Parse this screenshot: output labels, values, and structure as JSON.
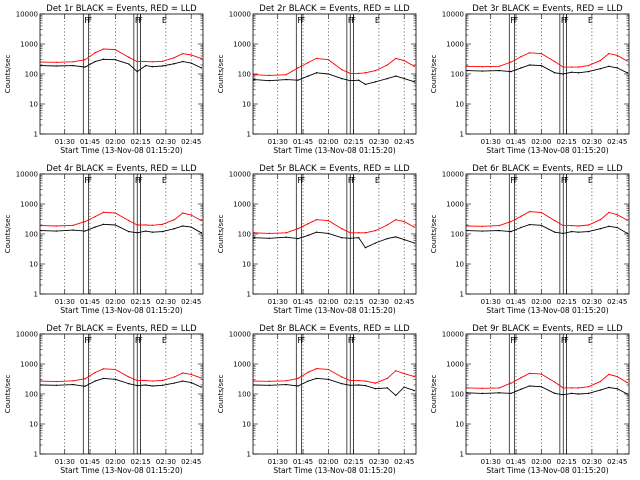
{
  "figure": {
    "background": "#ffffff",
    "event_color": "#000000",
    "lld_color": "#ff0000",
    "ylabel": "Counts/sec",
    "xlabel": "Start Time (13-Nov-08 01:15:20)",
    "x_tick_labels": [
      "01:30",
      "01:45",
      "02:00",
      "02:15",
      "02:30",
      "02:45"
    ],
    "y_tick_labels": [
      "1",
      "10",
      "100",
      "1000",
      "10000"
    ]
  },
  "chart_data": [
    {
      "type": "line",
      "title": "Det 1r BLACK = Events, RED = LLD",
      "xlabel": "Start Time (13-Nov-08 01:15:20)",
      "ylabel": "Counts/sec",
      "yscale": "log",
      "ylim": [
        1,
        10000
      ],
      "xlim": [
        "01:15:20",
        "02:52:00"
      ],
      "gap_markers": [
        "F",
        "F",
        "F",
        "F",
        "E"
      ],
      "x": [
        "01:16",
        "01:25",
        "01:35",
        "01:42",
        "01:48",
        "01:53",
        "02:00",
        "02:08",
        "02:13",
        "02:18",
        "02:22",
        "02:28",
        "02:35",
        "02:40",
        "02:45",
        "02:51"
      ],
      "series": [
        {
          "name": "Events",
          "values": [
            190,
            185,
            190,
            170,
            260,
            310,
            300,
            215,
            120,
            190,
            175,
            185,
            220,
            260,
            230,
            160
          ]
        },
        {
          "name": "LLD",
          "values": [
            250,
            245,
            255,
            300,
            510,
            680,
            650,
            360,
            260,
            260,
            255,
            265,
            350,
            480,
            430,
            330
          ]
        }
      ]
    },
    {
      "type": "line",
      "title": "Det 2r BLACK = Events, RED = LLD",
      "xlabel": "Start Time (13-Nov-08 01:15:20)",
      "ylabel": "Counts/sec",
      "yscale": "log",
      "ylim": [
        1,
        10000
      ],
      "xlim": [
        "01:15:20",
        "02:52:00"
      ],
      "gap_markers": [
        "F",
        "F",
        "F",
        "F",
        "E"
      ],
      "x": [
        "01:16",
        "01:25",
        "01:35",
        "01:42",
        "01:48",
        "01:53",
        "02:00",
        "02:08",
        "02:13",
        "02:18",
        "02:22",
        "02:28",
        "02:35",
        "02:40",
        "02:45",
        "02:51"
      ],
      "series": [
        {
          "name": "Events",
          "values": [
            65,
            60,
            65,
            62,
            85,
            110,
            100,
            70,
            60,
            62,
            45,
            55,
            70,
            85,
            70,
            55
          ]
        },
        {
          "name": "LLD",
          "values": [
            95,
            90,
            95,
            160,
            240,
            330,
            300,
            140,
            105,
            105,
            110,
            130,
            200,
            330,
            280,
            180
          ]
        }
      ]
    },
    {
      "type": "line",
      "title": "Det 3r BLACK = Events, RED = LLD",
      "xlabel": "Start Time (13-Nov-08 01:15:20)",
      "ylabel": "Counts/sec",
      "yscale": "log",
      "ylim": [
        1,
        10000
      ],
      "xlim": [
        "01:15:20",
        "02:52:00"
      ],
      "gap_markers": [
        "F",
        "F",
        "F",
        "F",
        "E"
      ],
      "x": [
        "01:16",
        "01:25",
        "01:35",
        "01:42",
        "01:48",
        "01:53",
        "02:00",
        "02:08",
        "02:13",
        "02:18",
        "02:22",
        "02:28",
        "02:35",
        "02:40",
        "02:45",
        "02:51"
      ],
      "series": [
        {
          "name": "Events",
          "values": [
            130,
            125,
            130,
            120,
            160,
            200,
            190,
            110,
            100,
            115,
            110,
            120,
            150,
            180,
            160,
            110
          ]
        },
        {
          "name": "LLD",
          "values": [
            180,
            175,
            180,
            250,
            380,
            510,
            480,
            260,
            170,
            170,
            170,
            190,
            280,
            480,
            420,
            270
          ]
        }
      ]
    },
    {
      "type": "line",
      "title": "Det 4r BLACK = Events, RED = LLD",
      "xlabel": "Start Time (13-Nov-08 01:15:20)",
      "ylabel": "Counts/sec",
      "yscale": "log",
      "ylim": [
        1,
        10000
      ],
      "xlim": [
        "01:15:20",
        "02:52:00"
      ],
      "gap_markers": [
        "F",
        "F",
        "F",
        "F",
        "E"
      ],
      "x": [
        "01:16",
        "01:25",
        "01:35",
        "01:42",
        "01:48",
        "01:53",
        "02:00",
        "02:08",
        "02:13",
        "02:18",
        "02:22",
        "02:28",
        "02:35",
        "02:40",
        "02:45",
        "02:51"
      ],
      "series": [
        {
          "name": "Events",
          "values": [
            130,
            125,
            135,
            125,
            170,
            210,
            200,
            120,
            110,
            125,
            115,
            120,
            150,
            185,
            170,
            110
          ]
        },
        {
          "name": "LLD",
          "values": [
            190,
            185,
            195,
            260,
            380,
            530,
            500,
            280,
            200,
            200,
            195,
            210,
            300,
            500,
            430,
            280
          ]
        }
      ]
    },
    {
      "type": "line",
      "title": "Det 5r BLACK = Events, RED = LLD",
      "xlabel": "Start Time (13-Nov-08 01:15:20)",
      "ylabel": "Counts/sec",
      "yscale": "log",
      "ylim": [
        1,
        10000
      ],
      "xlim": [
        "01:15:20",
        "02:52:00"
      ],
      "gap_markers": [
        "F",
        "F",
        "F",
        "F",
        "E"
      ],
      "x": [
        "01:16",
        "01:25",
        "01:35",
        "01:42",
        "01:48",
        "01:53",
        "02:00",
        "02:08",
        "02:13",
        "02:18",
        "02:22",
        "02:28",
        "02:35",
        "02:40",
        "02:45",
        "02:51"
      ],
      "series": [
        {
          "name": "Events",
          "values": [
            75,
            72,
            78,
            70,
            90,
            115,
            105,
            75,
            72,
            75,
            35,
            50,
            70,
            80,
            65,
            50
          ]
        },
        {
          "name": "LLD",
          "values": [
            110,
            105,
            110,
            150,
            220,
            300,
            280,
            150,
            110,
            110,
            110,
            130,
            200,
            300,
            260,
            170
          ]
        }
      ]
    },
    {
      "type": "line",
      "title": "Det 6r BLACK = Events, RED = LLD",
      "xlabel": "Start Time (13-Nov-08 01:15:20)",
      "ylabel": "Counts/sec",
      "yscale": "log",
      "ylim": [
        1,
        10000
      ],
      "xlim": [
        "01:15:20",
        "02:52:00"
      ],
      "gap_markers": [
        "F",
        "F",
        "F",
        "F",
        "E"
      ],
      "x": [
        "01:16",
        "01:25",
        "01:35",
        "01:42",
        "01:48",
        "01:53",
        "02:00",
        "02:08",
        "02:13",
        "02:18",
        "02:22",
        "02:28",
        "02:35",
        "02:40",
        "02:45",
        "02:51"
      ],
      "series": [
        {
          "name": "Events",
          "values": [
            130,
            125,
            130,
            120,
            165,
            205,
            195,
            115,
            105,
            120,
            115,
            120,
            150,
            180,
            165,
            105
          ]
        },
        {
          "name": "LLD",
          "values": [
            185,
            180,
            190,
            260,
            390,
            560,
            520,
            280,
            190,
            190,
            185,
            200,
            300,
            520,
            440,
            290
          ]
        }
      ]
    },
    {
      "type": "line",
      "title": "Det 7r BLACK = Events, RED = LLD",
      "xlabel": "Start Time (13-Nov-08 01:15:20)",
      "ylabel": "Counts/sec",
      "yscale": "log",
      "ylim": [
        1,
        10000
      ],
      "xlim": [
        "01:15:20",
        "02:52:00"
      ],
      "gap_markers": [
        "F",
        "F",
        "F",
        "F",
        "E"
      ],
      "x": [
        "01:16",
        "01:25",
        "01:35",
        "01:42",
        "01:48",
        "01:53",
        "02:00",
        "02:08",
        "02:13",
        "02:18",
        "02:22",
        "02:28",
        "02:35",
        "02:40",
        "02:45",
        "02:51"
      ],
      "series": [
        {
          "name": "Events",
          "values": [
            200,
            195,
            205,
            180,
            270,
            330,
            310,
            220,
            190,
            200,
            185,
            195,
            230,
            270,
            240,
            170
          ]
        },
        {
          "name": "LLD",
          "values": [
            270,
            260,
            275,
            320,
            520,
            690,
            660,
            370,
            280,
            280,
            270,
            285,
            370,
            500,
            450,
            340
          ]
        }
      ]
    },
    {
      "type": "line",
      "title": "Det 8r BLACK = Events, RED = LLD",
      "xlabel": "Start Time (13-Nov-08 01:15:20)",
      "ylabel": "Counts/sec",
      "yscale": "log",
      "ylim": [
        1,
        10000
      ],
      "xlim": [
        "01:15:20",
        "02:52:00"
      ],
      "gap_markers": [
        "F",
        "F",
        "F",
        "F"
      ],
      "x": [
        "01:16",
        "01:25",
        "01:35",
        "01:42",
        "01:48",
        "01:53",
        "02:00",
        "02:08",
        "02:13",
        "02:18",
        "02:22",
        "02:28",
        "02:35",
        "02:40",
        "02:45",
        "02:51"
      ],
      "series": [
        {
          "name": "Events",
          "values": [
            200,
            195,
            205,
            185,
            270,
            330,
            310,
            220,
            195,
            200,
            190,
            150,
            160,
            90,
            170,
            130
          ]
        },
        {
          "name": "LLD",
          "values": [
            270,
            265,
            275,
            330,
            530,
            700,
            660,
            370,
            280,
            280,
            270,
            230,
            330,
            600,
            480,
            380
          ]
        }
      ]
    },
    {
      "type": "line",
      "title": "Det 9r BLACK = Events, RED = LLD",
      "xlabel": "Start Time (13-Nov-08 01:15:20)",
      "ylabel": "Counts/sec",
      "yscale": "log",
      "ylim": [
        1,
        10000
      ],
      "xlim": [
        "01:15:20",
        "02:52:00"
      ],
      "gap_markers": [
        "F",
        "F",
        "F",
        "F",
        "E"
      ],
      "x": [
        "01:16",
        "01:25",
        "01:35",
        "01:42",
        "01:48",
        "01:53",
        "02:00",
        "02:08",
        "02:13",
        "02:18",
        "02:22",
        "02:28",
        "02:35",
        "02:40",
        "02:45",
        "02:51"
      ],
      "series": [
        {
          "name": "Events",
          "values": [
            110,
            105,
            110,
            105,
            145,
            185,
            175,
            105,
            95,
            105,
            100,
            105,
            135,
            165,
            150,
            100
          ]
        },
        {
          "name": "LLD",
          "values": [
            160,
            155,
            160,
            230,
            350,
            490,
            460,
            250,
            160,
            160,
            160,
            175,
            260,
            450,
            380,
            240
          ]
        }
      ]
    }
  ]
}
